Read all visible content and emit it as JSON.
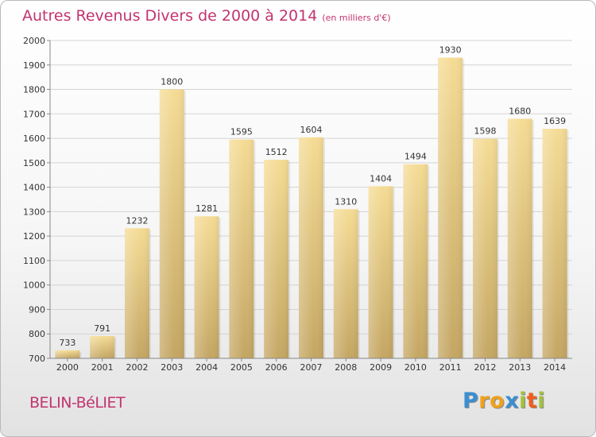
{
  "title": {
    "main": "Autres Revenus Divers de 2000 à 2014",
    "sub": "(en milliers d'€)"
  },
  "place": "BELIN-BéLIET",
  "logo": {
    "letters": [
      "P",
      "r",
      "o",
      "x",
      "i",
      "t",
      "i"
    ],
    "colors": [
      "#3a8fd1",
      "#f0a21b",
      "#f0a21b",
      "#3a8fd1",
      "#a1c23b",
      "#ef5f1b",
      "#a1c23b"
    ]
  },
  "colors": {
    "bar_top": "#f5dc95",
    "bar_bottom": "#c4a663",
    "text": "#c2346f",
    "grid": "#d4d4d4"
  },
  "chart_data": {
    "type": "bar",
    "title": "Autres Revenus Divers de 2000 à 2014",
    "subtitle": "(en milliers d'€)",
    "categories": [
      "2000",
      "2001",
      "2002",
      "2003",
      "2004",
      "2005",
      "2006",
      "2007",
      "2008",
      "2009",
      "2010",
      "2011",
      "2012",
      "2013",
      "2014"
    ],
    "values": [
      733,
      791,
      1232,
      1800,
      1281,
      1595,
      1512,
      1604,
      1310,
      1404,
      1494,
      1930,
      1598,
      1680,
      1639
    ],
    "data_labels": [
      "733",
      "791",
      "1232",
      "1800",
      "1281",
      "1595",
      "1512",
      "1604",
      "1310",
      "1404",
      "1494",
      "1930",
      "1598",
      "1680",
      "1639"
    ],
    "yticks": [
      700,
      800,
      900,
      1000,
      1100,
      1200,
      1300,
      1400,
      1500,
      1600,
      1700,
      1800,
      1900,
      2000
    ],
    "ylim": [
      700,
      2000
    ],
    "grid": true,
    "legend": "none"
  }
}
